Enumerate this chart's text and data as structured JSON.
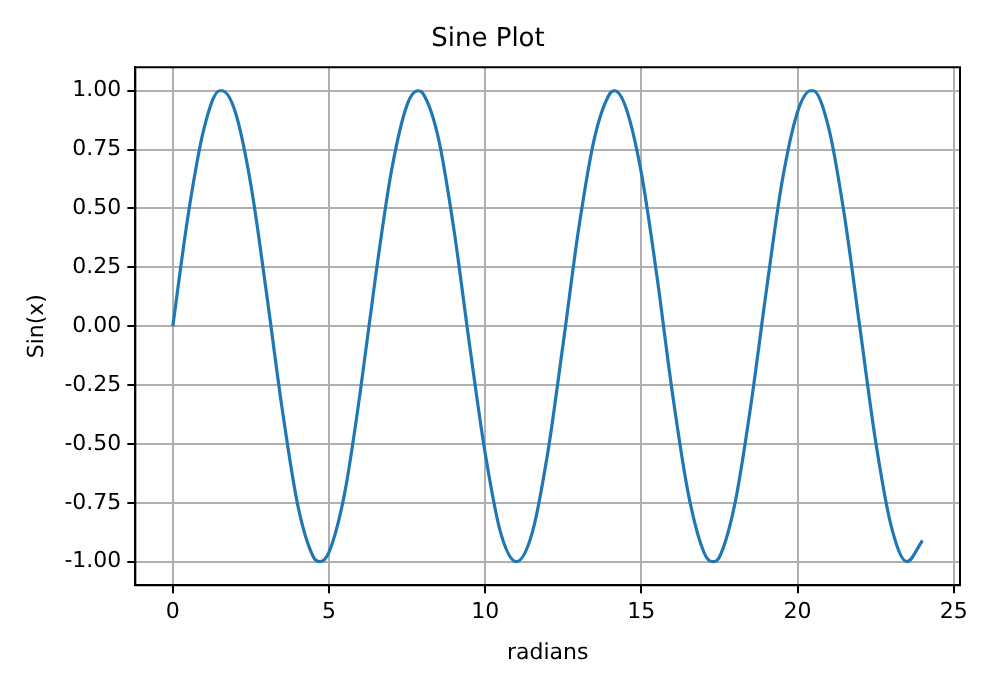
{
  "chart_data": {
    "type": "line",
    "title": "Sine Plot",
    "xlabel": "radians",
    "ylabel": "Sin(x)",
    "x": [
      0,
      0.5,
      1,
      1.5,
      1.57,
      2,
      2.5,
      3,
      3.5,
      4,
      4.5,
      4.71,
      5,
      5.5,
      6,
      6.5,
      7,
      7.5,
      7.85,
      8,
      8.5,
      9,
      9.5,
      10,
      10.5,
      11,
      11.5,
      12,
      12.5,
      13,
      13.5,
      14,
      14.14,
      14.5,
      15,
      15.5,
      16,
      16.5,
      17,
      17.28,
      17.5,
      18,
      18.5,
      19,
      19.5,
      20,
      20.42,
      20.5,
      21,
      21.5,
      22,
      22.5,
      23,
      23.5,
      24
    ],
    "series": [
      {
        "color": "#1f77b4",
        "values": [
          0,
          0.48,
          0.84,
          1.0,
          1.0,
          0.91,
          0.6,
          0.14,
          -0.35,
          -0.76,
          -0.98,
          -1.0,
          -0.96,
          -0.71,
          -0.28,
          0.22,
          0.66,
          0.94,
          1.0,
          0.99,
          0.8,
          0.41,
          -0.08,
          -0.54,
          -0.88,
          -1.0,
          -0.88,
          -0.54,
          -0.07,
          0.42,
          0.8,
          0.99,
          1.0,
          0.93,
          0.65,
          0.21,
          -0.29,
          -0.71,
          -0.96,
          -1.0,
          -0.98,
          -0.75,
          -0.34,
          0.15,
          0.61,
          0.91,
          1.0,
          1.0,
          0.84,
          0.47,
          -0.01,
          -0.49,
          -0.85,
          -1.0,
          -0.91
        ]
      }
    ],
    "xlim": [
      -1.2,
      25.2
    ],
    "xticks": [
      0,
      5,
      10,
      15,
      20,
      25
    ],
    "ylim": [
      -1.1,
      1.1
    ],
    "yticks": [
      {
        "value": -1,
        "label": "-1.00"
      },
      {
        "value": -0.75,
        "label": "-0.75"
      },
      {
        "value": -0.5,
        "label": "-0.50"
      },
      {
        "value": -0.25,
        "label": "-0.25"
      },
      {
        "value": 0,
        "label": "0.00"
      },
      {
        "value": 0.25,
        "label": "0.25"
      },
      {
        "value": 0.5,
        "label": "0.50"
      },
      {
        "value": 0.75,
        "label": "0.75"
      },
      {
        "value": 1,
        "label": "1.00"
      }
    ],
    "grid": true,
    "marker": "none",
    "line_style": "solid"
  }
}
